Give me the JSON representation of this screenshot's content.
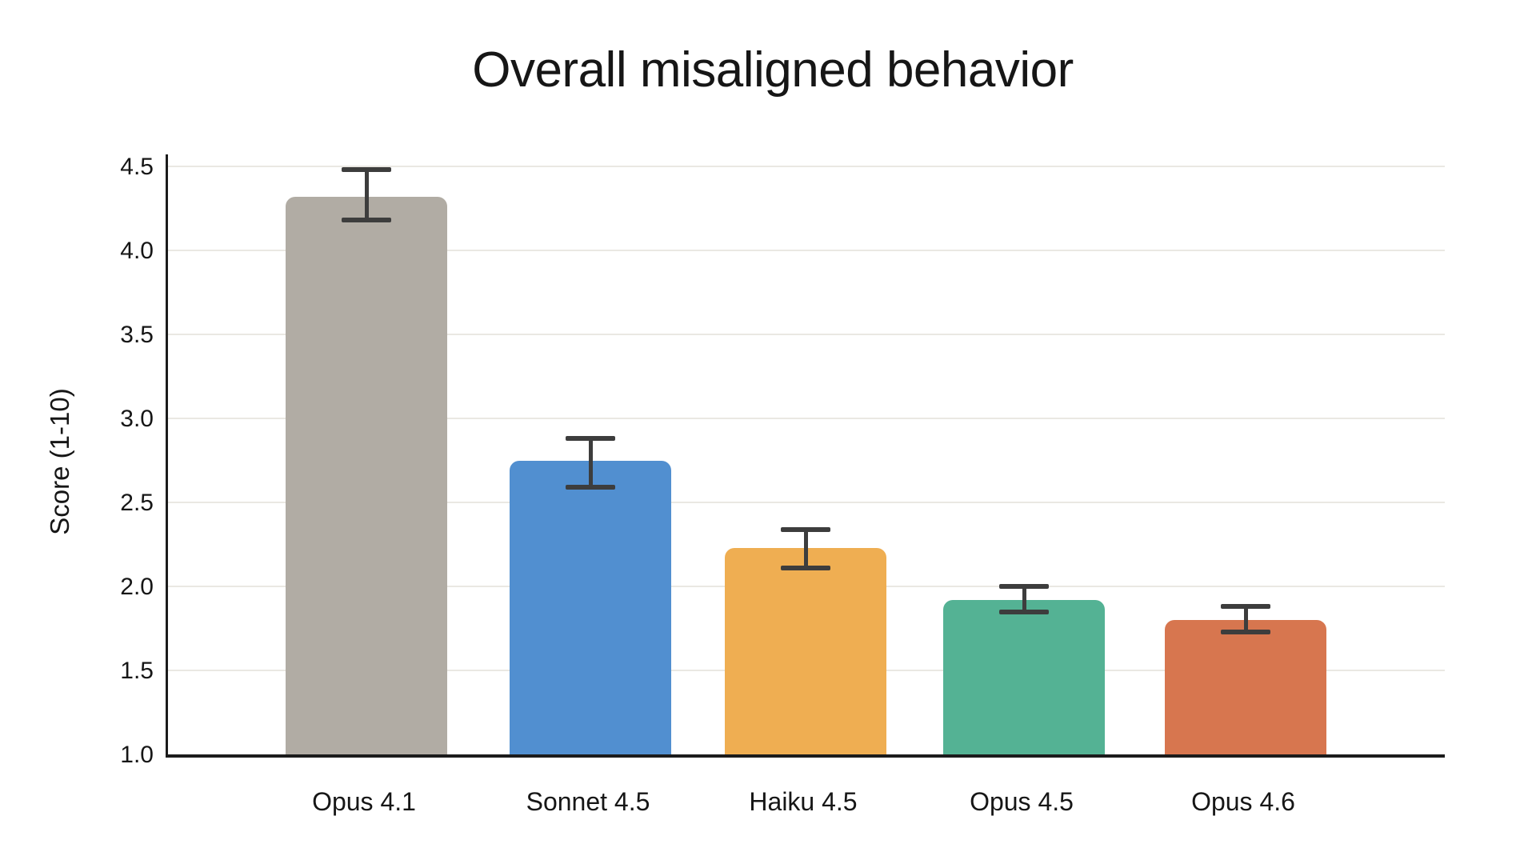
{
  "page": {
    "background_color": "#ffffff"
  },
  "chart_data": {
    "type": "bar",
    "title": "Overall misaligned behavior",
    "ylabel": "Score (1-10)",
    "xlabel": "",
    "categories": [
      "Opus 4.1",
      "Sonnet 4.5",
      "Haiku 4.5",
      "Opus 4.5",
      "Opus 4.6"
    ],
    "values": [
      4.32,
      2.75,
      2.23,
      1.92,
      1.8
    ],
    "error_low": [
      4.18,
      2.59,
      2.11,
      1.85,
      1.73
    ],
    "error_high": [
      4.48,
      2.88,
      2.34,
      2.0,
      1.88
    ],
    "bar_colors": [
      "#b1aca4",
      "#518fd0",
      "#efae52",
      "#54b294",
      "#d7764f"
    ],
    "error_bar_color": "#3d3d3d",
    "axis_color": "#1b1b1b",
    "gridline_color": "#eae8e3",
    "text_color": "#161616",
    "ylim": [
      1.0,
      4.5
    ],
    "yticks": [
      1.0,
      1.5,
      2.0,
      2.5,
      3.0,
      3.5,
      4.0,
      4.5
    ],
    "grid": "horizontal",
    "legend": "none"
  }
}
